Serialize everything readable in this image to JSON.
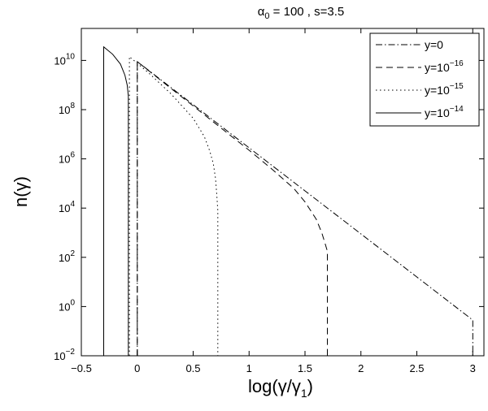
{
  "chart_data": {
    "type": "line",
    "title": {
      "base": "α",
      "sub": "0",
      "rest": " = 100 , s=3.5"
    },
    "xlabel": {
      "pre": "log(γ/γ",
      "sub": "1",
      "post": ")"
    },
    "ylabel": "n(γ)",
    "xlim": [
      -0.5,
      3.1
    ],
    "ylim_log10": [
      -2,
      11.3
    ],
    "y_scale": "log",
    "grid": false,
    "legend_position": "top-right",
    "x_ticks": [
      {
        "value": -0.5,
        "label": "−0.5"
      },
      {
        "value": 0,
        "label": "0"
      },
      {
        "value": 0.5,
        "label": "0.5"
      },
      {
        "value": 1,
        "label": "1"
      },
      {
        "value": 1.5,
        "label": "1.5"
      },
      {
        "value": 2,
        "label": "2"
      },
      {
        "value": 2.5,
        "label": "2.5"
      },
      {
        "value": 3,
        "label": "3"
      }
    ],
    "y_ticks": [
      {
        "exp": -2,
        "base": "10",
        "sup": "−2"
      },
      {
        "exp": 0,
        "base": "10",
        "sup": "0"
      },
      {
        "exp": 2,
        "base": "10",
        "sup": "2"
      },
      {
        "exp": 4,
        "base": "10",
        "sup": "4"
      },
      {
        "exp": 6,
        "base": "10",
        "sup": "6"
      },
      {
        "exp": 8,
        "base": "10",
        "sup": "8"
      },
      {
        "exp": 10,
        "base": "10",
        "sup": "10"
      }
    ],
    "series": [
      {
        "name": "y=0",
        "label_base": "y=0",
        "label_sup": "",
        "dash": "dashdot",
        "x": [
          0,
          0,
          0.25,
          0.5,
          1,
          1.5,
          2,
          2.5,
          3,
          3
        ],
        "log10_y": [
          -2,
          9.95,
          9.08,
          8.2,
          6.45,
          4.7,
          2.95,
          1.2,
          -0.55,
          -2
        ]
      },
      {
        "name": "y=10^-16",
        "label_base": "y=10",
        "label_sup": "−16",
        "dash": "dashed",
        "x": [
          0,
          0,
          0.25,
          0.5,
          0.75,
          1,
          1.2,
          1.4,
          1.5,
          1.6,
          1.65,
          1.68,
          1.7,
          1.7
        ],
        "log10_y": [
          -2,
          9.95,
          9.05,
          8.15,
          7.25,
          6.35,
          5.6,
          4.8,
          4.25,
          3.55,
          3.0,
          2.55,
          2.25,
          -2
        ]
      },
      {
        "name": "y=10^-15",
        "label_base": "y=10",
        "label_sup": "−15",
        "dash": "dotted",
        "x": [
          -0.07,
          -0.07,
          0.1,
          0.3,
          0.5,
          0.6,
          0.65,
          0.68,
          0.7,
          0.71,
          0.72,
          0.72
        ],
        "log10_y": [
          -2,
          10.15,
          9.5,
          8.65,
          7.65,
          6.9,
          6.3,
          5.8,
          5.2,
          4.6,
          3.9,
          -2
        ]
      },
      {
        "name": "y=10^-14",
        "label_base": "y=10",
        "label_sup": "−14",
        "dash": "solid",
        "x": [
          -0.3,
          -0.3,
          -0.22,
          -0.15,
          -0.11,
          -0.09,
          -0.08,
          -0.08
        ],
        "log10_y": [
          -2,
          10.55,
          10.25,
          9.85,
          9.4,
          9.0,
          8.55,
          -2
        ]
      }
    ]
  }
}
